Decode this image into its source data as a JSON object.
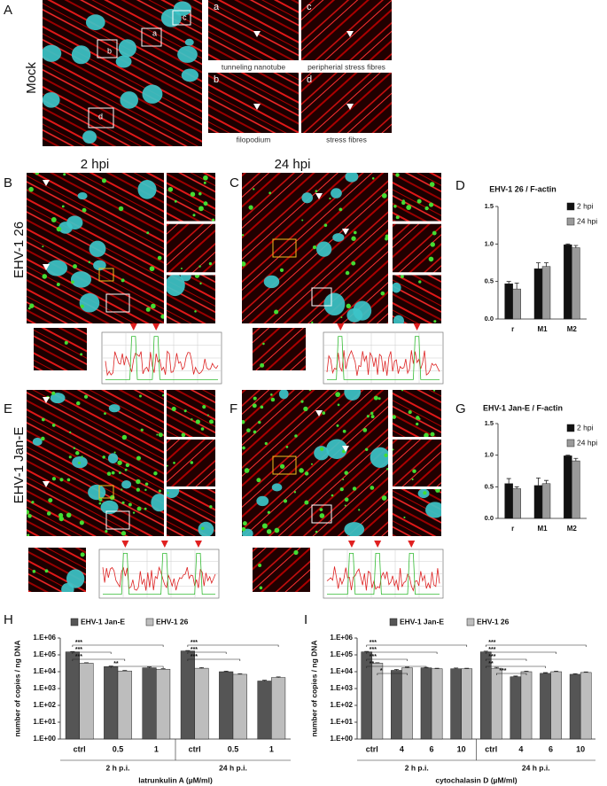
{
  "figure": {
    "panel_labels": [
      "A",
      "B",
      "C",
      "D",
      "E",
      "F",
      "G",
      "H",
      "I"
    ],
    "row_mock": "Mock",
    "row_26": "EHV-1 26",
    "row_jane": "EHV-1 Jan-E",
    "col_2": "2 hpi",
    "col_24": "24 hpi",
    "insets": [
      {
        "letter": "a",
        "caption": "tunneling nanotube"
      },
      {
        "letter": "c",
        "caption": "peripherial stress fibres"
      },
      {
        "letter": "b",
        "caption": "filopodium"
      },
      {
        "letter": "d",
        "caption": "stress fibres"
      }
    ]
  },
  "chart_data": [
    {
      "type": "bar",
      "title": "EHV-1 26 / F-actin",
      "categories": [
        "r",
        "M1",
        "M2"
      ],
      "series": [
        {
          "name": "2 hpi",
          "color": "#111111",
          "values": [
            0.47,
            0.67,
            0.99
          ],
          "errors": [
            0.03,
            0.08,
            0.01
          ]
        },
        {
          "name": "24 hpi",
          "color": "#9a9a9a",
          "values": [
            0.4,
            0.7,
            0.95
          ],
          "errors": [
            0.08,
            0.05,
            0.03
          ]
        }
      ],
      "ylim": [
        0,
        1.5
      ],
      "yticks": [
        {
          "value": 0,
          "label": "0.0"
        },
        0.5,
        {
          "value": 1,
          "label": "1.0"
        },
        1.5
      ]
    },
    {
      "type": "bar",
      "title": "EHV-1 Jan-E / F-actin",
      "categories": [
        "r",
        "M1",
        "M2"
      ],
      "series": [
        {
          "name": "2 hpi",
          "color": "#111111",
          "values": [
            0.55,
            0.52,
            0.99
          ],
          "errors": [
            0.08,
            0.12,
            0.01
          ]
        },
        {
          "name": "24 hpi",
          "color": "#9a9a9a",
          "values": [
            0.47,
            0.55,
            0.91
          ],
          "errors": [
            0.03,
            0.05,
            0.04
          ]
        }
      ],
      "ylim": [
        0,
        1.5
      ],
      "yticks": [
        {
          "value": 0,
          "label": "0.0"
        },
        0.5,
        {
          "value": 1,
          "label": "1.0"
        },
        1.5
      ]
    },
    {
      "type": "bar",
      "log_scale": true,
      "ylabel": "number of copies / ng DNA",
      "xlabel": "latrunkulin A (µM/ml)",
      "categories": [
        "ctrl",
        "0.5",
        "1",
        "ctrl",
        "0.5",
        "1"
      ],
      "groups": [
        "2 h p.i.",
        "24 h p.i."
      ],
      "series": [
        {
          "name": "EHV-1 Jan-E",
          "color": "#555555",
          "values": [
            150000,
            20000,
            17000,
            170000,
            10000,
            2800
          ],
          "errors": [
            8000,
            1500,
            2000,
            10000,
            800,
            300
          ]
        },
        {
          "name": "EHV-1 26",
          "color": "#bdbdbd",
          "values": [
            32000,
            11000,
            14000,
            16000,
            7000,
            4500
          ],
          "errors": [
            2000,
            800,
            1000,
            1500,
            600,
            400
          ]
        }
      ],
      "ylim": [
        1,
        1000000
      ],
      "yticks": [
        {
          "value": 1,
          "label": "1.E+00"
        },
        {
          "value": 10,
          "label": "1.E+01"
        },
        {
          "value": 100,
          "label": "1.E+02"
        },
        {
          "value": 1000,
          "label": "1.E+03"
        },
        {
          "value": 10000,
          "label": "1.E+04"
        },
        {
          "value": 100000,
          "label": "1.E+05"
        },
        {
          "value": 1000000,
          "label": "1.E+06"
        }
      ],
      "annotations": [
        "***",
        "***",
        "***",
        "**",
        "***",
        "***",
        "***"
      ]
    },
    {
      "type": "bar",
      "log_scale": true,
      "ylabel": "number of copies / ng DNA",
      "xlabel": "cytochalasin D (µM/ml)",
      "categories": [
        "ctrl",
        "4",
        "6",
        "10",
        "ctrl",
        "4",
        "6",
        "10"
      ],
      "groups": [
        "2 h p.i.",
        "24 h p.i."
      ],
      "series": [
        {
          "name": "EHV-1 Jan-E",
          "color": "#555555",
          "values": [
            150000,
            12000,
            17000,
            15000,
            150000,
            5000,
            8000,
            7000
          ],
          "errors": [
            10000,
            1500,
            1000,
            1500,
            15000,
            500,
            800,
            600
          ]
        },
        {
          "name": "EHV-1 26",
          "color": "#bdbdbd",
          "values": [
            32000,
            17000,
            15000,
            15000,
            16000,
            10000,
            10000,
            9000
          ],
          "errors": [
            2000,
            1500,
            1000,
            1000,
            2000,
            800,
            800,
            700
          ]
        }
      ],
      "ylim": [
        1,
        1000000
      ],
      "yticks": [
        {
          "value": 1,
          "label": "1.E+00"
        },
        {
          "value": 10,
          "label": "1.E+01"
        },
        {
          "value": 100,
          "label": "1.E+02"
        },
        {
          "value": 1000,
          "label": "1.E+03"
        },
        {
          "value": 10000,
          "label": "1.E+04"
        },
        {
          "value": 100000,
          "label": "1.E+05"
        },
        {
          "value": 1000000,
          "label": "1.E+06"
        }
      ],
      "annotations": [
        "***",
        "***",
        "***",
        "**",
        "*",
        "***",
        "***",
        "***",
        "**",
        "***"
      ]
    }
  ]
}
